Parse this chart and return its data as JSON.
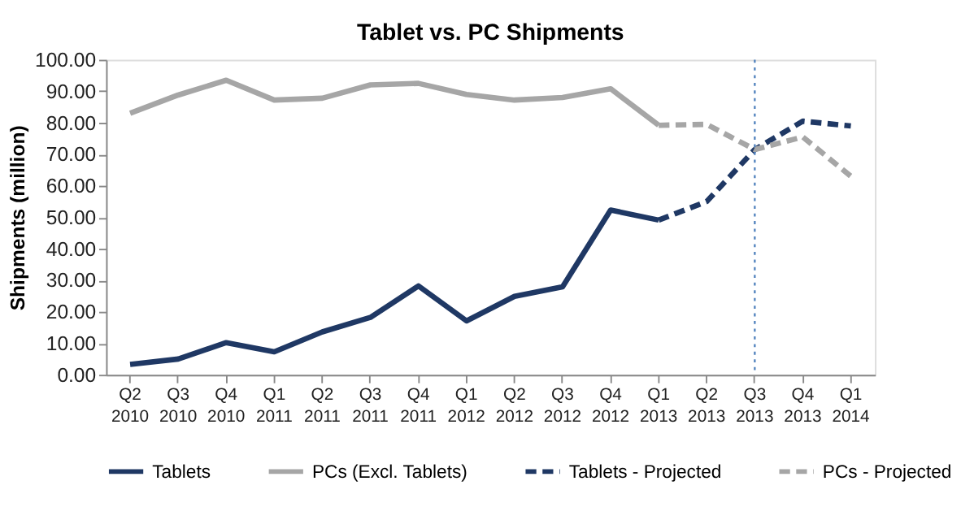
{
  "chart_data": {
    "type": "line",
    "title": "Tablet vs. PC Shipments",
    "ylabel": "Shipments (million)",
    "categories": [
      "Q2 2010",
      "Q3 2010",
      "Q4 2010",
      "Q1 2011",
      "Q2 2011",
      "Q3 2011",
      "Q4 2011",
      "Q1 2012",
      "Q2 2012",
      "Q3 2012",
      "Q4 2012",
      "Q1 2013",
      "Q2 2013",
      "Q3 2013",
      "Q4 2013",
      "Q1 2014"
    ],
    "series": [
      {
        "name": "Tablets",
        "color": "#1f3864",
        "line_style": "solid",
        "values": [
          3.3,
          5.0,
          10.2,
          7.3,
          13.6,
          18.2,
          28.2,
          17.1,
          24.9,
          27.9,
          52.3,
          49.1,
          null,
          null,
          null,
          null
        ]
      },
      {
        "name": "PCs (Excl. Tablets)",
        "color": "#a6a6a6",
        "line_style": "solid",
        "values": [
          83.0,
          88.8,
          93.5,
          87.2,
          87.8,
          92.0,
          92.5,
          89.0,
          87.2,
          88.0,
          90.8,
          79.2,
          null,
          null,
          null,
          null
        ]
      },
      {
        "name": "Tablets - Projected",
        "color": "#1f3864",
        "line_style": "dashed",
        "values": [
          null,
          null,
          null,
          null,
          null,
          null,
          null,
          null,
          null,
          null,
          null,
          49.1,
          55.0,
          71.5,
          80.5,
          79.0
        ]
      },
      {
        "name": "PCs - Projected",
        "color": "#a6a6a6",
        "line_style": "dashed",
        "values": [
          null,
          null,
          null,
          null,
          null,
          null,
          null,
          null,
          null,
          null,
          null,
          79.2,
          79.5,
          71.5,
          75.5,
          63.0
        ]
      }
    ],
    "ylim": [
      0,
      100
    ],
    "yticks": [
      {
        "value": 0,
        "label": "0.00"
      },
      {
        "value": 10,
        "label": "10.00"
      },
      {
        "value": 20,
        "label": "20.00"
      },
      {
        "value": 30,
        "label": "30.00"
      },
      {
        "value": 40,
        "label": "40.00"
      },
      {
        "value": 50,
        "label": "50.00"
      },
      {
        "value": 60,
        "label": "60.00"
      },
      {
        "value": 70,
        "label": "70.00"
      },
      {
        "value": 80,
        "label": "80.00"
      },
      {
        "value": 90,
        "label": "90.00"
      },
      {
        "value": 100,
        "label": "100.00"
      }
    ],
    "ref_lines": [
      {
        "axis": "x",
        "value": "Q3 2013",
        "color": "#4f81bd",
        "line_style": "dotted"
      }
    ],
    "grid": false,
    "legend": "bottom",
    "marker": "none"
  }
}
